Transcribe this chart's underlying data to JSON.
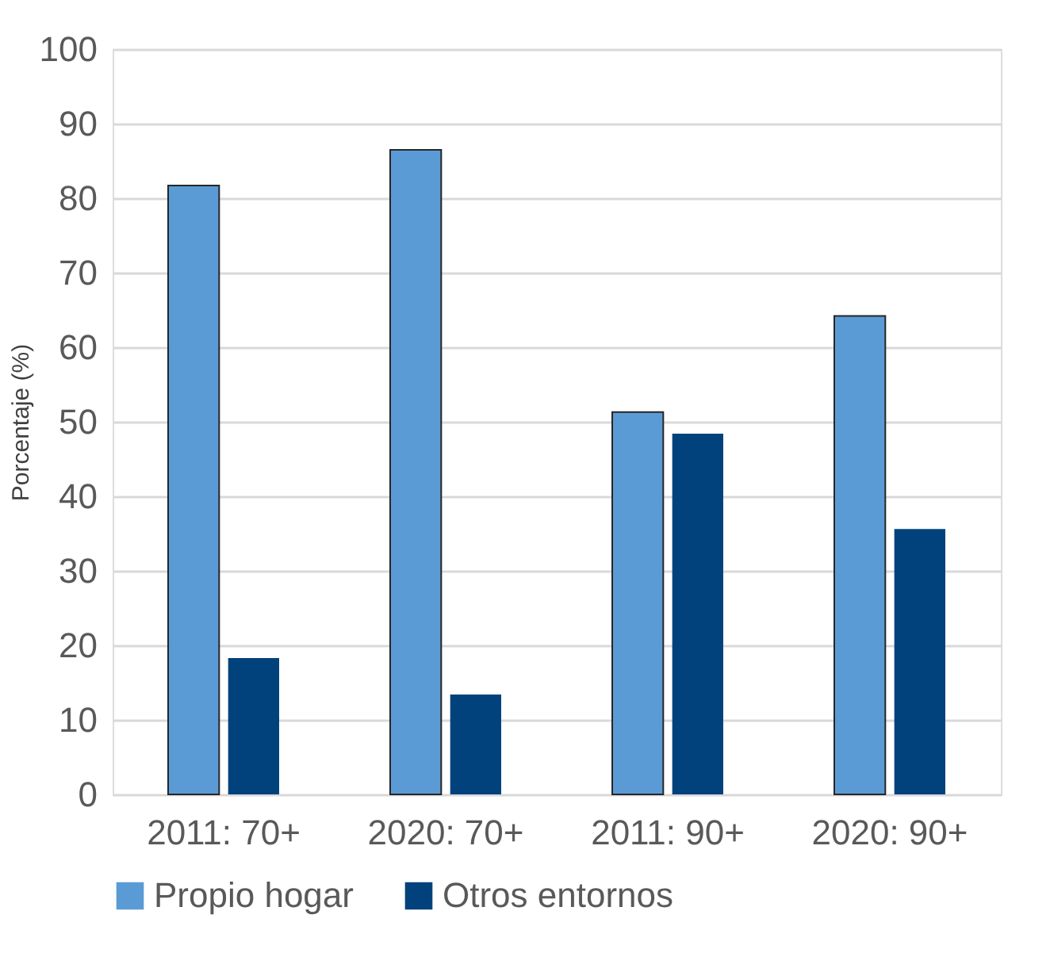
{
  "chart_data": {
    "type": "bar",
    "ylabel": "Porcentaje (%)",
    "categories": [
      "2011: 70+",
      "2020: 70+",
      "2011: 90+",
      "2020: 90+"
    ],
    "series": [
      {
        "name": "Propio hogar",
        "color": "#5b9bd5",
        "values": [
          81.7,
          86.5,
          51.3,
          64.2
        ]
      },
      {
        "name": "Otros entornos",
        "color": "#02427c",
        "values": [
          18.3,
          13.4,
          48.4,
          35.6
        ]
      }
    ],
    "ylim": [
      0,
      100
    ],
    "yticks": [
      0,
      10,
      20,
      30,
      40,
      50,
      60,
      70,
      80,
      90,
      100
    ],
    "grid": "y",
    "legend": "bottom"
  }
}
